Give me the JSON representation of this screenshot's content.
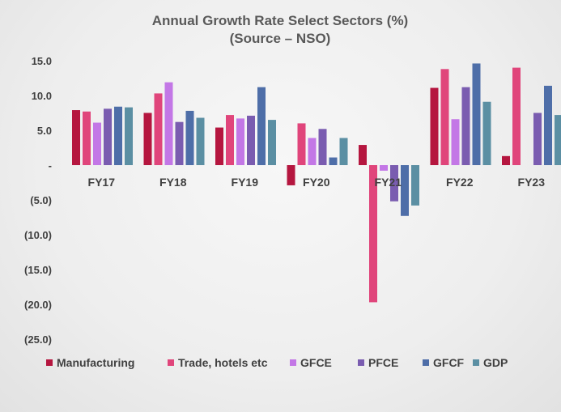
{
  "chart_data": {
    "type": "bar",
    "title": "Annual Growth Rate Select Sectors (%)",
    "subtitle": "(Source – NSO)",
    "categories": [
      "FY17",
      "FY18",
      "FY19",
      "FY20",
      "FY21",
      "FY22",
      "FY23"
    ],
    "series": [
      {
        "name": "Manufacturing",
        "color": "#b5163f",
        "values": [
          7.9,
          7.5,
          5.4,
          -2.9,
          2.9,
          11.1,
          1.3
        ]
      },
      {
        "name": "Trade, hotels etc",
        "color": "#e0457b",
        "values": [
          7.7,
          10.3,
          7.2,
          6.0,
          -19.7,
          13.8,
          14.0
        ]
      },
      {
        "name": "GFCE",
        "color": "#c377e6",
        "values": [
          6.1,
          11.9,
          6.7,
          3.9,
          -0.8,
          6.6,
          0
        ]
      },
      {
        "name": "PFCE",
        "color": "#7a5cb0",
        "values": [
          8.1,
          6.2,
          7.1,
          5.2,
          -5.2,
          11.2,
          7.5
        ]
      },
      {
        "name": "GFCF",
        "color": "#4e6ea8",
        "values": [
          8.4,
          7.8,
          11.2,
          1.1,
          -7.3,
          14.6,
          11.4
        ]
      },
      {
        "name": "GDP",
        "color": "#5b8fa3",
        "values": [
          8.3,
          6.8,
          6.5,
          3.9,
          -5.8,
          9.1,
          7.2
        ]
      }
    ],
    "y_ticks": [
      "15.0",
      "10.0",
      "5.0",
      "-",
      "(5.0)",
      "(10.0)",
      "(15.0)",
      "(20.0)",
      "(25.0)"
    ],
    "ylim": [
      -25,
      15
    ],
    "grid": false,
    "legend_position": "bottom"
  }
}
